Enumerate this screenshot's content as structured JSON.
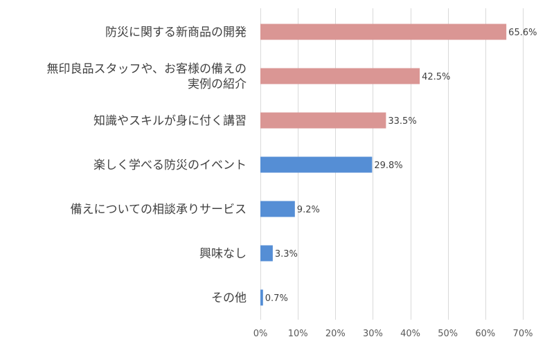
{
  "chart_data": {
    "type": "bar",
    "orientation": "horizontal",
    "categories": [
      [
        "防災に関する新商品の開発"
      ],
      [
        "無印良品スタッフや、お客様の備えの",
        "実例の紹介"
      ],
      [
        "知識やスキルが身に付く講習"
      ],
      [
        "楽しく学べる防災のイベント"
      ],
      [
        "備えについての相談承りサービス"
      ],
      [
        "興味なし"
      ],
      [
        "その他"
      ]
    ],
    "values": [
      65.6,
      42.5,
      33.5,
      29.8,
      9.2,
      3.3,
      0.7
    ],
    "value_labels": [
      "65.6%",
      "42.5%",
      "33.5%",
      "29.8%",
      "9.2%",
      "3.3%",
      "0.7%"
    ],
    "bar_colors": [
      "#da9694",
      "#da9694",
      "#da9694",
      "#558ed5",
      "#558ed5",
      "#558ed5",
      "#558ed5"
    ],
    "xlim": [
      0,
      70
    ],
    "x_ticks": [
      0,
      10,
      20,
      30,
      40,
      50,
      60,
      70
    ],
    "x_tick_labels": [
      "0%",
      "10%",
      "20%",
      "30%",
      "40%",
      "50%",
      "60%",
      "70%"
    ],
    "grid": true,
    "title": "",
    "xlabel": "",
    "ylabel": ""
  }
}
